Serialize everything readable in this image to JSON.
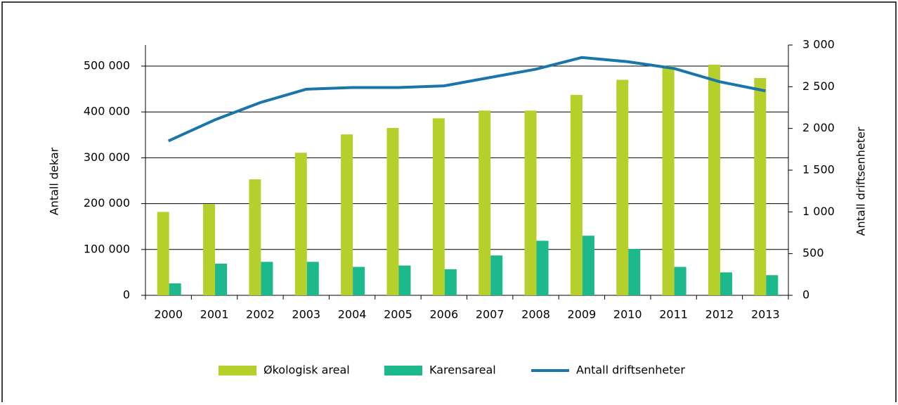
{
  "chart_data": {
    "type": "bar",
    "categories": [
      "2000",
      "2001",
      "2002",
      "2003",
      "2004",
      "2005",
      "2006",
      "2007",
      "2008",
      "2009",
      "2010",
      "2011",
      "2012",
      "2013"
    ],
    "series": [
      {
        "name": "Økologisk areal",
        "type": "bar",
        "color": "#b5cf2b",
        "values": [
          182000,
          199000,
          253000,
          311000,
          351000,
          365000,
          386000,
          403000,
          403000,
          437000,
          470000,
          500000,
          503000,
          474000
        ]
      },
      {
        "name": "Karensareal",
        "type": "bar",
        "color": "#1db88b",
        "values": [
          26000,
          69000,
          73000,
          73000,
          62000,
          65000,
          57000,
          87000,
          119000,
          130000,
          101000,
          62000,
          50000,
          44000
        ]
      },
      {
        "name": "Antall driftsenheter",
        "type": "line",
        "axis": "y2",
        "color": "#1a76a8",
        "values": [
          1850,
          2100,
          2310,
          2470,
          2490,
          2490,
          2510,
          2610,
          2710,
          2850,
          2800,
          2720,
          2560,
          2450
        ]
      }
    ],
    "ylabel": "Antall dekar",
    "y2label": "Antall driftsenheter",
    "ylim": [
      0,
      546000
    ],
    "yticks": [
      0,
      {
        "value": 100000,
        "label": "100 000"
      },
      {
        "value": 200000,
        "label": "200 000"
      },
      {
        "value": 300000,
        "label": "300 000"
      },
      {
        "value": 400000,
        "label": "400 000"
      },
      {
        "value": 500000,
        "label": "500 000"
      }
    ],
    "y2lim": [
      0,
      3000
    ],
    "y2ticks": [
      0,
      500,
      {
        "value": 1000,
        "label": "1 000"
      },
      {
        "value": 1500,
        "label": "1 500"
      },
      {
        "value": 2000,
        "label": "2 000"
      },
      {
        "value": 2500,
        "label": "2 500"
      },
      {
        "value": 3000,
        "label": "3 000"
      }
    ],
    "grid": true,
    "legend": "bottom"
  }
}
